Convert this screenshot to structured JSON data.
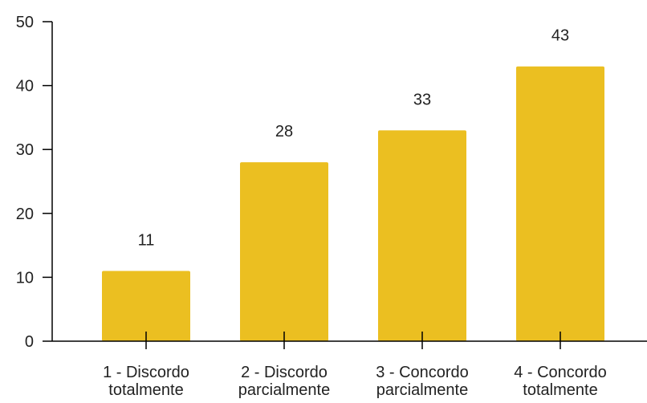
{
  "chart_data": {
    "type": "bar",
    "title": "",
    "xlabel": "",
    "ylabel": "",
    "categories": [
      [
        "1 - Discordo",
        "totalmente"
      ],
      [
        "2 - Discordo",
        "parcialmente"
      ],
      [
        "3 - Concordo",
        "parcialmente"
      ],
      [
        "4 - Concordo",
        "totalmente"
      ]
    ],
    "values": [
      11,
      28,
      33,
      43
    ],
    "ylim": [
      0,
      50
    ],
    "yticks": [
      "0",
      "10",
      "20",
      "30",
      "40",
      "50"
    ],
    "grid": false,
    "legend": "none",
    "bar_color": "#EBBF21",
    "axis_color": "#000000"
  }
}
